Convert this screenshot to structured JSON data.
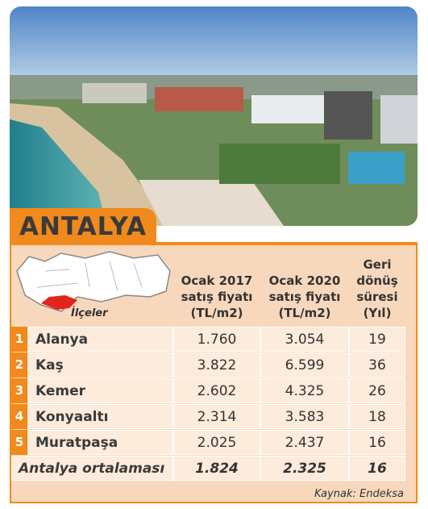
{
  "header": {
    "title": "ANTALYA",
    "map_label": "İlçeler"
  },
  "table": {
    "columns": [
      [
        "Ocak 2017",
        "satış fiyatı",
        "(TL/m2)"
      ],
      [
        "Ocak 2020",
        "satış fiyatı",
        "(TL/m2)"
      ],
      [
        "Geri",
        "dönüş",
        "süresi",
        "(Yıl)"
      ]
    ],
    "rows": [
      [
        "1",
        "Alanya",
        "1.760",
        "3.054",
        "19"
      ],
      [
        "2",
        "Kaş",
        "3.822",
        "6.599",
        "36"
      ],
      [
        "3",
        "Kemer",
        "2.602",
        "4.325",
        "26"
      ],
      [
        "4",
        "Konyaaltı",
        "2.314",
        "3.583",
        "18"
      ],
      [
        "5",
        "Muratpaşa",
        "2.025",
        "2.437",
        "16"
      ]
    ],
    "average": [
      "Antalya ortalaması",
      "1.824",
      "2.325",
      "16"
    ]
  },
  "source": "Kaynak: Endeksa"
}
